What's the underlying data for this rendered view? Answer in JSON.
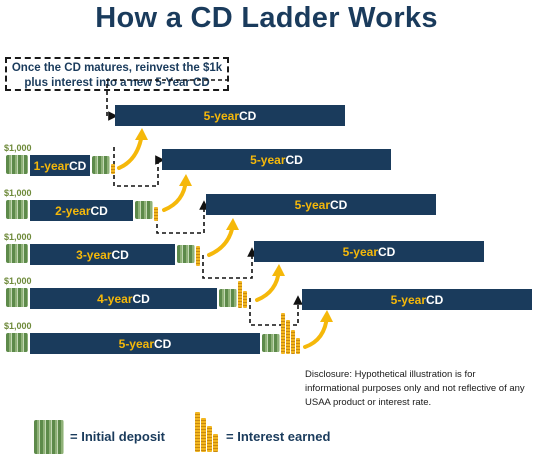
{
  "title": "How a CD Ladder Works",
  "callout": {
    "line1": "Once the CD matures, reinvest the $1k",
    "line2": "plus interest into a new 5-Year CD"
  },
  "rungs": [
    {
      "amount": "$1,000",
      "term_year": "1-year",
      "suffix": " CD"
    },
    {
      "amount": "$1,000",
      "term_year": "2-year",
      "suffix": " CD"
    },
    {
      "amount": "$1,000",
      "term_year": "3-year",
      "suffix": " CD"
    },
    {
      "amount": "$1,000",
      "term_year": "4-year",
      "suffix": " CD"
    },
    {
      "amount": "$1,000",
      "term_year": "5-year",
      "suffix": " CD"
    }
  ],
  "reinvested": [
    {
      "term_year": "5-year",
      "suffix": " CD"
    },
    {
      "term_year": "5-year",
      "suffix": " CD"
    },
    {
      "term_year": "5-year",
      "suffix": " CD"
    },
    {
      "term_year": "5-year",
      "suffix": " CD"
    },
    {
      "term_year": "5-year",
      "suffix": " CD"
    }
  ],
  "disclosure": "Disclosure: Hypothetical illustration is for informational purposes only and not reflective of any USAA product or interest rate.",
  "legend": {
    "deposit": "= Initial deposit",
    "interest": "= Interest earned"
  },
  "colors": {
    "navy": "#1a3b5c",
    "gold": "#f5b80a",
    "money_green": "#5d8a4a"
  }
}
